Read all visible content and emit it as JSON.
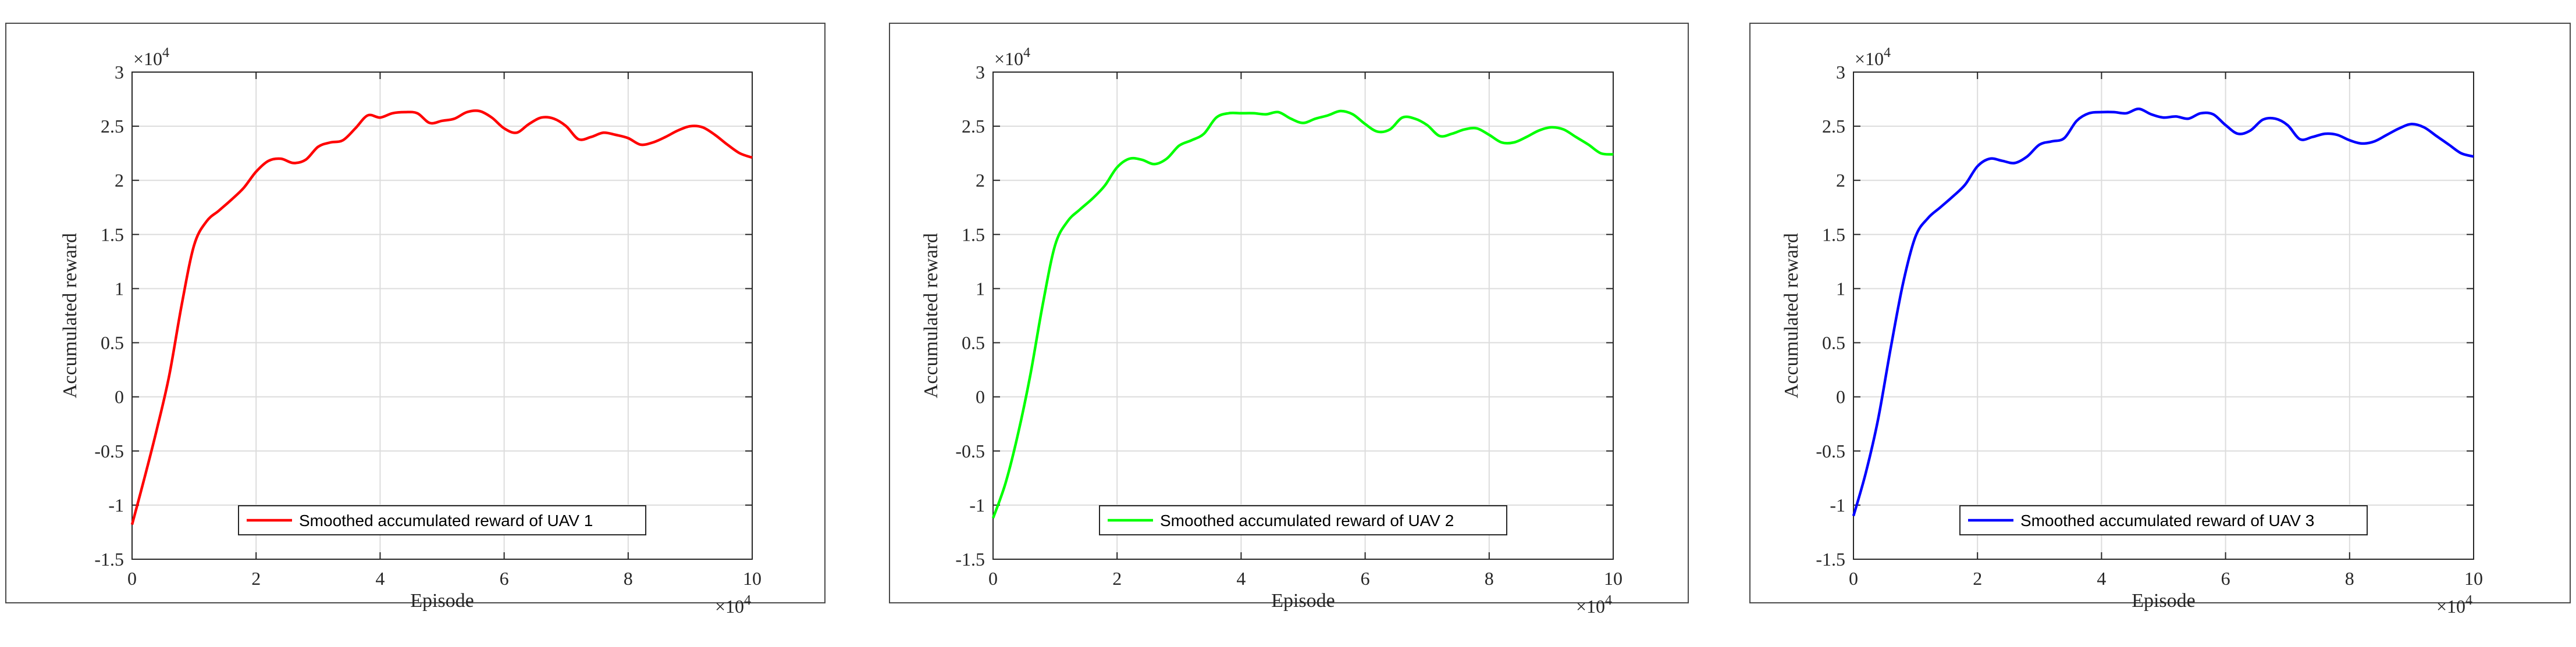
{
  "chart_data": [
    {
      "type": "line",
      "xlabel": "Episode",
      "ylabel": "Accumulated reward",
      "xlim": [
        0,
        100000
      ],
      "ylim": [
        -15000,
        30000
      ],
      "x_ticks": [
        "0",
        "2",
        "4",
        "6",
        "8",
        "10"
      ],
      "y_ticks": [
        "-1.5",
        "-1",
        "-0.5",
        "0",
        "0.5",
        "1",
        "1.5",
        "2",
        "2.5",
        "3"
      ],
      "x_exponent": "×10",
      "x_exponent_power": "4",
      "y_exponent": "×10",
      "y_exponent_power": "4",
      "grid": true,
      "legend_position": "bottom-center",
      "series": [
        {
          "name": "Smoothed accumulated reward of UAV 1",
          "color": "#ff0000",
          "x": [
            0,
            2000,
            4000,
            6000,
            8000,
            10000,
            12000,
            14000,
            16000,
            18000,
            20000,
            22000,
            24000,
            26000,
            28000,
            30000,
            32000,
            34000,
            36000,
            38000,
            40000,
            42000,
            44000,
            46000,
            48000,
            50000,
            52000,
            54000,
            56000,
            58000,
            60000,
            62000,
            64000,
            66000,
            68000,
            70000,
            72000,
            74000,
            76000,
            78000,
            80000,
            82000,
            84000,
            86000,
            88000,
            90000,
            92000,
            94000,
            96000,
            98000,
            100000
          ],
          "values": [
            -11800,
            -7500,
            -3000,
            2000,
            8500,
            14000,
            16200,
            17200,
            18200,
            19300,
            20800,
            21800,
            22000,
            21600,
            21900,
            23100,
            23500,
            23700,
            24800,
            26000,
            25800,
            26200,
            26300,
            26200,
            25300,
            25500,
            25700,
            26300,
            26400,
            25800,
            24800,
            24400,
            25200,
            25800,
            25700,
            25000,
            23800,
            24000,
            24400,
            24200,
            23900,
            23300,
            23500,
            24000,
            24600,
            25000,
            24900,
            24200,
            23300,
            22500,
            22100
          ]
        }
      ]
    },
    {
      "type": "line",
      "xlabel": "Episode",
      "ylabel": "Accumulated reward",
      "xlim": [
        0,
        100000
      ],
      "ylim": [
        -15000,
        30000
      ],
      "x_ticks": [
        "0",
        "2",
        "4",
        "6",
        "8",
        "10"
      ],
      "y_ticks": [
        "-1.5",
        "-1",
        "-0.5",
        "0",
        "0.5",
        "1",
        "1.5",
        "2",
        "2.5",
        "3"
      ],
      "x_exponent": "×10",
      "x_exponent_power": "4",
      "y_exponent": "×10",
      "y_exponent_power": "4",
      "grid": true,
      "legend_position": "bottom-center",
      "series": [
        {
          "name": "Smoothed accumulated reward of UAV 2",
          "color": "#00ff00",
          "x": [
            0,
            2000,
            4000,
            6000,
            8000,
            10000,
            12000,
            14000,
            16000,
            18000,
            20000,
            22000,
            24000,
            26000,
            28000,
            30000,
            32000,
            34000,
            36000,
            38000,
            40000,
            42000,
            44000,
            46000,
            48000,
            50000,
            52000,
            54000,
            56000,
            58000,
            60000,
            62000,
            64000,
            66000,
            68000,
            70000,
            72000,
            74000,
            76000,
            78000,
            80000,
            82000,
            84000,
            86000,
            88000,
            90000,
            92000,
            94000,
            96000,
            98000,
            100000
          ],
          "values": [
            -11200,
            -8000,
            -3500,
            2000,
            8500,
            14000,
            16200,
            17300,
            18300,
            19500,
            21200,
            22000,
            21900,
            21500,
            22000,
            23200,
            23700,
            24300,
            25800,
            26200,
            26200,
            26200,
            26100,
            26300,
            25700,
            25300,
            25700,
            26000,
            26400,
            26100,
            25200,
            24500,
            24700,
            25800,
            25700,
            25100,
            24100,
            24300,
            24700,
            24800,
            24200,
            23500,
            23500,
            24000,
            24600,
            24900,
            24700,
            24000,
            23300,
            22500,
            22400
          ]
        }
      ]
    },
    {
      "type": "line",
      "xlabel": "Episode",
      "ylabel": "Accumulated reward",
      "xlim": [
        0,
        100000
      ],
      "ylim": [
        -15000,
        30000
      ],
      "x_ticks": [
        "0",
        "2",
        "4",
        "6",
        "8",
        "10"
      ],
      "y_ticks": [
        "-1.5",
        "-1",
        "-0.5",
        "0",
        "0.5",
        "1",
        "1.5",
        "2",
        "2.5",
        "3"
      ],
      "x_exponent": "×10",
      "x_exponent_power": "4",
      "y_exponent": "×10",
      "y_exponent_power": "4",
      "grid": true,
      "legend_position": "bottom-center",
      "series": [
        {
          "name": "Smoothed accumulated reward of UAV 3",
          "color": "#0000ff",
          "x": [
            0,
            2000,
            4000,
            6000,
            8000,
            10000,
            12000,
            14000,
            16000,
            18000,
            20000,
            22000,
            24000,
            26000,
            28000,
            30000,
            32000,
            34000,
            36000,
            38000,
            40000,
            42000,
            44000,
            46000,
            48000,
            50000,
            52000,
            54000,
            56000,
            58000,
            60000,
            62000,
            64000,
            66000,
            68000,
            70000,
            72000,
            74000,
            76000,
            78000,
            80000,
            82000,
            84000,
            86000,
            88000,
            90000,
            92000,
            94000,
            96000,
            98000,
            100000
          ],
          "values": [
            -11000,
            -7000,
            -2000,
            4500,
            10500,
            14800,
            16500,
            17500,
            18500,
            19600,
            21300,
            22000,
            21800,
            21600,
            22200,
            23300,
            23600,
            23900,
            25500,
            26200,
            26300,
            26300,
            26200,
            26600,
            26100,
            25800,
            25900,
            25700,
            26200,
            26100,
            25100,
            24300,
            24600,
            25600,
            25700,
            25100,
            23800,
            24000,
            24300,
            24200,
            23700,
            23400,
            23600,
            24200,
            24800,
            25200,
            24900,
            24100,
            23300,
            22500,
            22200
          ]
        }
      ]
    }
  ]
}
